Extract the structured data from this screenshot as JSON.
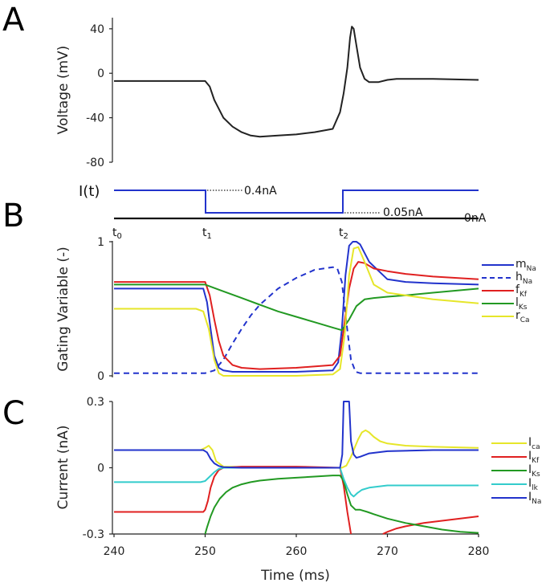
{
  "panel_letters": [
    "A",
    "B",
    "C"
  ],
  "stim": {
    "label": "I(t)",
    "high_label": "0.4nA",
    "low_label": "0.05nA",
    "zero_label": "0nA",
    "time_labels": [
      {
        "base": "t",
        "sub": "0"
      },
      {
        "base": "t",
        "sub": "1"
      },
      {
        "base": "t",
        "sub": "2"
      }
    ],
    "time_values_ms": [
      240,
      250,
      265
    ]
  },
  "colors": {
    "black": "#222222",
    "blue": "#2233cc",
    "red": "#e02020",
    "green": "#229922",
    "yellow": "#e6e62a",
    "cyan": "#33cccc"
  },
  "chart_data": [
    {
      "id": "A",
      "type": "line",
      "ylabel": "Voltage (mV)",
      "ylim": [
        -80,
        50
      ],
      "yticks": [
        40,
        0,
        -40,
        -80
      ],
      "xlim": [
        240,
        280
      ],
      "series": [
        {
          "color": "#222222",
          "x": [
            240,
            250,
            250.5,
            251,
            252,
            253,
            254,
            255,
            256,
            258,
            260,
            262,
            264,
            264.8,
            265.2,
            265.6,
            265.9,
            266.1,
            266.3,
            266.6,
            267,
            267.5,
            268,
            269,
            270,
            271,
            272,
            275,
            280
          ],
          "y": [
            -7,
            -7,
            -12,
            -24,
            -40,
            -48,
            -53,
            -56,
            -57,
            -56,
            -55,
            -53,
            -50,
            -35,
            -18,
            5,
            32,
            42,
            40,
            25,
            5,
            -5,
            -8,
            -8,
            -6,
            -5,
            -5,
            -5,
            -6
          ]
        }
      ]
    },
    {
      "id": "B",
      "type": "line",
      "ylabel": "Gating Variable (-)",
      "ylim": [
        0,
        1
      ],
      "yticks": [
        1,
        0
      ],
      "xlim": [
        240,
        280
      ],
      "legend_position": "right",
      "series": [
        {
          "name_base": "m",
          "name_sub": "Na",
          "color": "#2233cc",
          "dash": false,
          "x": [
            240,
            249.8,
            250.2,
            250.6,
            251,
            251.5,
            252,
            253,
            255,
            260,
            264,
            264.6,
            265,
            265.4,
            265.8,
            266.2,
            266.6,
            267,
            268,
            270,
            272,
            275,
            280
          ],
          "y": [
            0.65,
            0.65,
            0.55,
            0.35,
            0.15,
            0.06,
            0.04,
            0.03,
            0.03,
            0.03,
            0.04,
            0.1,
            0.35,
            0.75,
            0.97,
            1.0,
            1.0,
            0.98,
            0.85,
            0.72,
            0.7,
            0.69,
            0.68
          ]
        },
        {
          "name_base": "h",
          "name_sub": "Na",
          "color": "#2233cc",
          "dash": true,
          "x": [
            240,
            250,
            251,
            252,
            253,
            254,
            255,
            256,
            258,
            260,
            262,
            264,
            264.5,
            265,
            265.5,
            266,
            266.5,
            267,
            268,
            270,
            275,
            280
          ],
          "y": [
            0.02,
            0.02,
            0.04,
            0.12,
            0.24,
            0.35,
            0.45,
            0.53,
            0.65,
            0.73,
            0.79,
            0.81,
            0.8,
            0.7,
            0.4,
            0.12,
            0.03,
            0.02,
            0.02,
            0.02,
            0.02,
            0.02
          ]
        },
        {
          "name_base": "f",
          "name_sub": "Kf",
          "color": "#e02020",
          "dash": false,
          "x": [
            240,
            250,
            250.5,
            251,
            251.5,
            252,
            253,
            254,
            256,
            260,
            264,
            264.8,
            265.3,
            265.8,
            266.3,
            266.8,
            267.5,
            268.5,
            270,
            272,
            275,
            280
          ],
          "y": [
            0.7,
            0.7,
            0.6,
            0.42,
            0.26,
            0.15,
            0.08,
            0.06,
            0.05,
            0.06,
            0.08,
            0.15,
            0.4,
            0.65,
            0.8,
            0.85,
            0.84,
            0.8,
            0.78,
            0.76,
            0.74,
            0.72
          ]
        },
        {
          "name_base": "l",
          "name_sub": "Ks",
          "color": "#229922",
          "dash": false,
          "x": [
            240,
            250,
            252,
            254,
            256,
            258,
            260,
            262,
            264,
            265,
            265.8,
            266.6,
            267.5,
            268.5,
            270,
            272,
            275,
            280
          ],
          "y": [
            0.68,
            0.68,
            0.63,
            0.58,
            0.53,
            0.48,
            0.44,
            0.4,
            0.36,
            0.34,
            0.42,
            0.52,
            0.57,
            0.58,
            0.59,
            0.6,
            0.62,
            0.65
          ]
        },
        {
          "name_base": "r",
          "name_sub": "Ca",
          "color": "#e6e62a",
          "dash": false,
          "x": [
            240,
            249,
            249.8,
            250.4,
            251,
            251.5,
            252,
            260,
            264,
            264.8,
            265.3,
            265.8,
            266.3,
            266.8,
            267.5,
            268.5,
            270,
            272,
            275,
            280
          ],
          "y": [
            0.5,
            0.5,
            0.48,
            0.35,
            0.12,
            0.02,
            0.0,
            0.0,
            0.01,
            0.05,
            0.3,
            0.75,
            0.95,
            0.96,
            0.85,
            0.68,
            0.62,
            0.6,
            0.57,
            0.54
          ]
        }
      ]
    },
    {
      "id": "C",
      "type": "line",
      "xlabel": "Time (ms)",
      "ylabel": "Current (nA)",
      "ylim": [
        -0.3,
        0.3
      ],
      "yticks": [
        0.3,
        0,
        -0.3
      ],
      "xlim": [
        240,
        280
      ],
      "xticks": [
        240,
        250,
        260,
        270,
        280
      ],
      "legend_position": "right",
      "series": [
        {
          "name_base": "I",
          "name_sub": "ca",
          "color": "#e6e62a",
          "x": [
            240,
            249.5,
            250,
            250.4,
            250.8,
            251.2,
            252,
            260,
            265,
            265.5,
            266,
            266.4,
            266.8,
            267.2,
            267.6,
            268,
            268.5,
            269.2,
            270,
            272,
            275,
            280
          ],
          "y": [
            0.08,
            0.08,
            0.09,
            0.1,
            0.08,
            0.03,
            0.005,
            0.0,
            0.0,
            0.01,
            0.05,
            0.09,
            0.13,
            0.16,
            0.17,
            0.16,
            0.14,
            0.12,
            0.11,
            0.1,
            0.095,
            0.09
          ]
        },
        {
          "name_base": "I",
          "name_sub": "Kf",
          "color": "#e02020",
          "x": [
            240,
            249.8,
            250,
            250.3,
            250.6,
            251,
            251.5,
            252,
            254,
            260,
            264.8,
            265.2,
            265.6,
            266
          ],
          "y": [
            -0.2,
            -0.2,
            -0.19,
            -0.15,
            -0.09,
            -0.04,
            -0.01,
            0.0,
            0.005,
            0.005,
            0.0,
            -0.08,
            -0.2,
            -0.3
          ],
          "x2": [
            269.5,
            270,
            271,
            272,
            274,
            276,
            278,
            280
          ],
          "y2": [
            -0.3,
            -0.29,
            -0.275,
            -0.265,
            -0.25,
            -0.24,
            -0.23,
            -0.22
          ]
        },
        {
          "name_base": "I",
          "name_sub": "Ks",
          "color": "#229922",
          "x": [
            250,
            250.2,
            250.6,
            251,
            251.6,
            252.3,
            253,
            254,
            255,
            256,
            258,
            260,
            262,
            264,
            264.8,
            265.2,
            265.6,
            266,
            266.5,
            267,
            267.8,
            268.5,
            270,
            272,
            274,
            276,
            278,
            280
          ],
          "y": [
            -0.3,
            -0.27,
            -0.22,
            -0.18,
            -0.14,
            -0.11,
            -0.09,
            -0.075,
            -0.065,
            -0.058,
            -0.05,
            -0.045,
            -0.04,
            -0.035,
            -0.035,
            -0.06,
            -0.12,
            -0.17,
            -0.19,
            -0.19,
            -0.2,
            -0.21,
            -0.23,
            -0.25,
            -0.265,
            -0.28,
            -0.29,
            -0.295
          ]
        },
        {
          "name_base": "I",
          "name_sub": "lk",
          "color": "#33cccc",
          "x": [
            240,
            249.5,
            250,
            250.5,
            251,
            251.5,
            252,
            254,
            260,
            264.8,
            265.2,
            265.6,
            266,
            266.3,
            266.7,
            267.2,
            268,
            269,
            270,
            272,
            275,
            280
          ],
          "y": [
            -0.065,
            -0.065,
            -0.06,
            -0.04,
            -0.02,
            -0.005,
            0.0,
            0.0,
            0.0,
            0.0,
            -0.05,
            -0.09,
            -0.12,
            -0.13,
            -0.115,
            -0.1,
            -0.09,
            -0.085,
            -0.08,
            -0.08,
            -0.08,
            -0.08
          ]
        },
        {
          "name_base": "I",
          "name_sub": "Na",
          "color": "#2233cc",
          "x": [
            240,
            249.8,
            250.2,
            250.6,
            251,
            251.5,
            252,
            254,
            260,
            264.8,
            265.05,
            265.2,
            265.35,
            265.5,
            265.65,
            265.8,
            266,
            266.3,
            266.6,
            267,
            268,
            270,
            275,
            280
          ],
          "y": [
            0.08,
            0.08,
            0.07,
            0.04,
            0.02,
            0.008,
            0.003,
            0.0,
            0.0,
            0.0,
            0.06,
            0.3,
            0.3,
            0.3,
            0.3,
            0.3,
            0.12,
            0.06,
            0.045,
            0.05,
            0.065,
            0.075,
            0.08,
            0.08
          ]
        }
      ]
    }
  ]
}
